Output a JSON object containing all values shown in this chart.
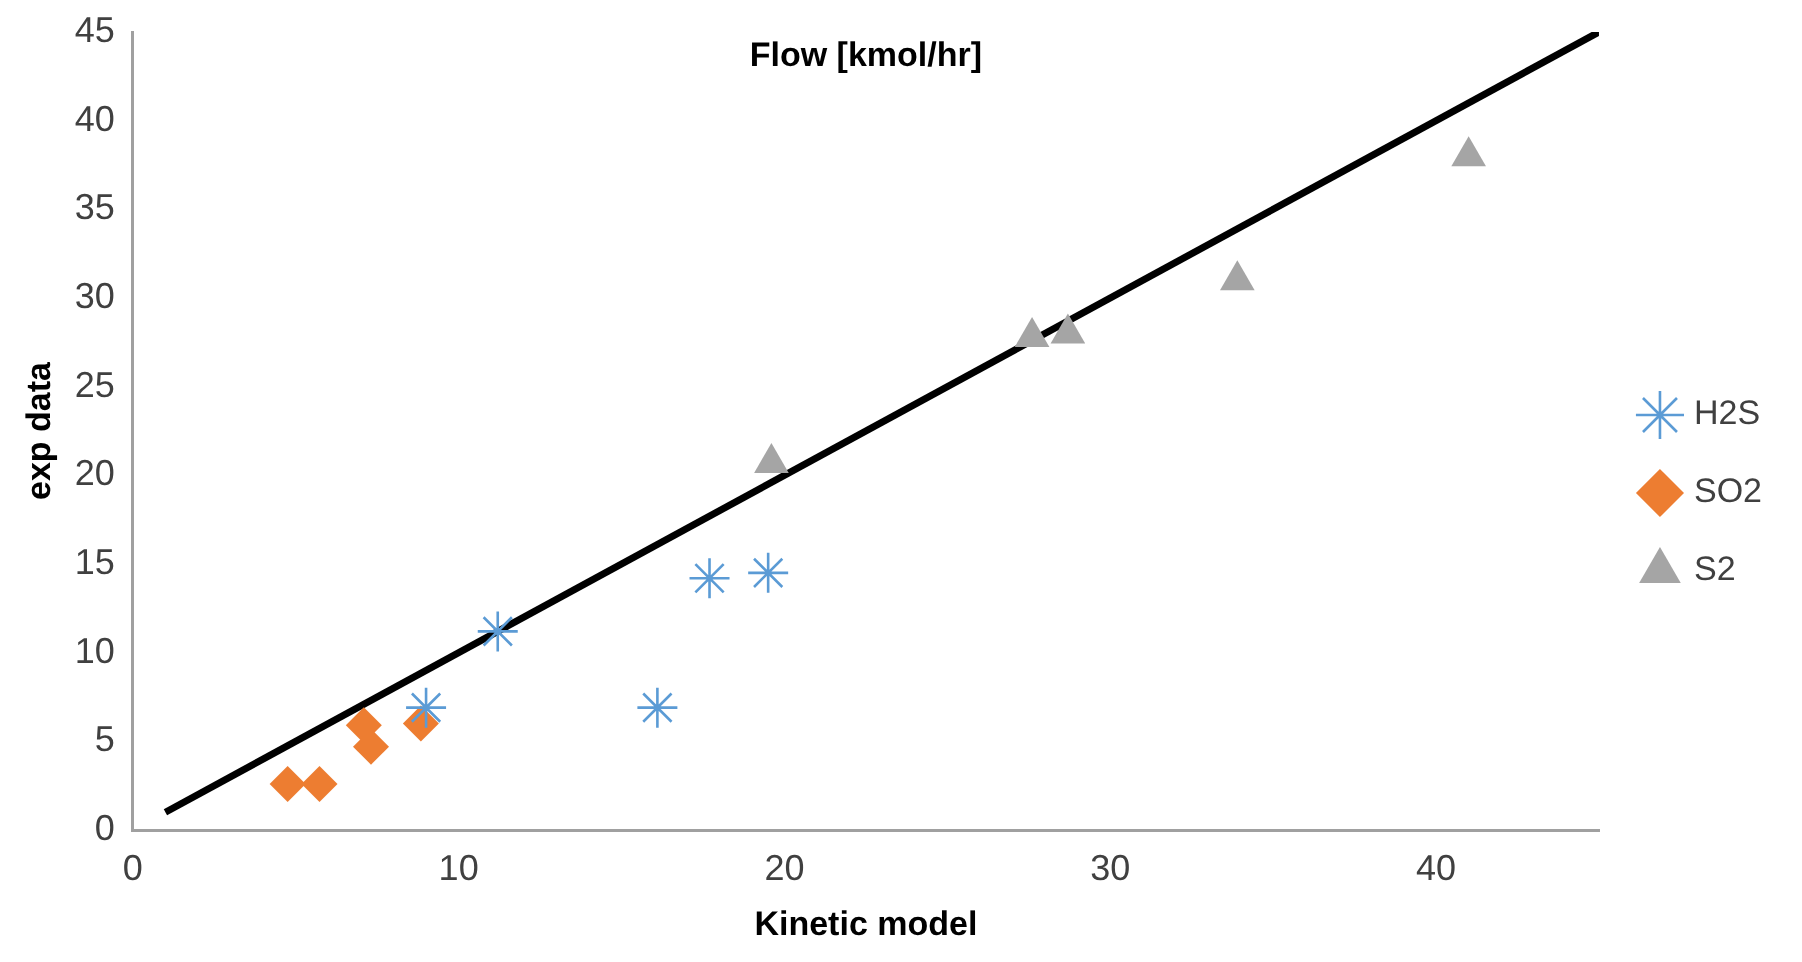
{
  "chart_data": {
    "type": "scatter",
    "title": "Flow [kmol/hr]",
    "xlabel": "Kinetic model",
    "ylabel": "exp data",
    "xlim": [
      0,
      45
    ],
    "xticks": [
      0,
      10,
      20,
      30,
      40
    ],
    "ylim": [
      0,
      45
    ],
    "yticks": [
      0,
      5,
      10,
      15,
      20,
      25,
      30,
      35,
      40,
      45
    ],
    "grid": false,
    "legend": "right",
    "series": [
      {
        "name": "H2S",
        "color": "#5b9bd5",
        "marker": "cross",
        "x": [
          9.0,
          11.2,
          16.1,
          17.7,
          19.5
        ],
        "values": [
          6.9,
          11.2,
          6.9,
          14.2,
          14.5
        ]
      },
      {
        "name": "SO2",
        "color": "#ed7d31",
        "marker": "diamond",
        "x": [
          4.75,
          5.73,
          7.09,
          7.31,
          8.84
        ],
        "values": [
          2.6,
          2.6,
          5.9,
          4.7,
          6.0
        ]
      },
      {
        "name": "S2",
        "color": "#a5a5a5",
        "marker": "triangle",
        "x": [
          19.6,
          27.6,
          28.7,
          33.9,
          41.0
        ],
        "values": [
          20.7,
          27.8,
          28.0,
          31.0,
          38.0
        ]
      },
      {
        "type": "line",
        "color": "#000000",
        "marker": "none",
        "x": [
          1,
          45
        ],
        "values": [
          1,
          45
        ]
      }
    ]
  }
}
